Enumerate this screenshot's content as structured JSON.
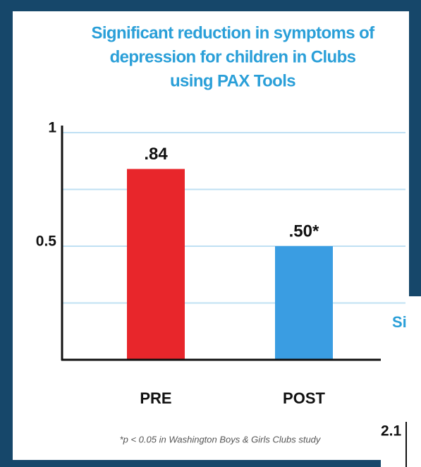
{
  "chart_data": {
    "type": "bar",
    "title": [
      "Significant reduction in symptoms of",
      "depression for children in Clubs",
      "using PAX Tools"
    ],
    "categories": [
      "PRE",
      "POST"
    ],
    "values": [
      0.84,
      0.5
    ],
    "value_labels": [
      ".84",
      ".50*"
    ],
    "colors": [
      "#e8262b",
      "#3a9de2"
    ],
    "ylim": [
      0,
      1
    ],
    "yticks": [
      0.5,
      1
    ],
    "grid_lines": [
      0.25,
      0.5,
      0.75,
      1
    ],
    "grid": true,
    "footnote": "*p < 0.05 in Washington Boys & Girls Clubs study"
  },
  "partial_panel": {
    "title_fragment": "Si",
    "tick_fragment": "2.1"
  }
}
